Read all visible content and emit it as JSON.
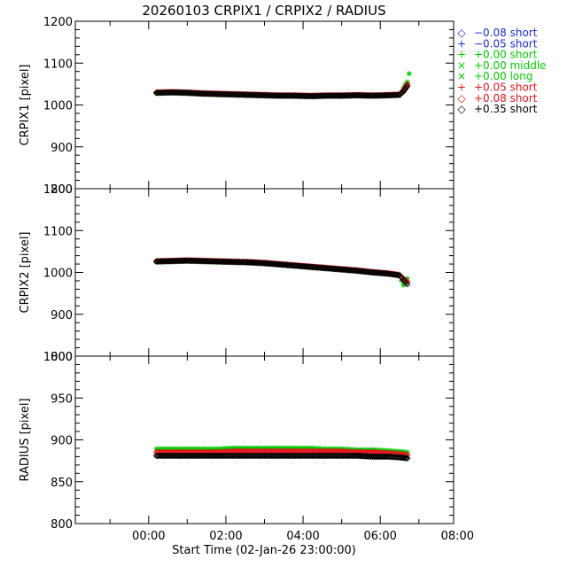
{
  "chart_data": {
    "type": "scatter",
    "title": "20260103 CRPIX1 / CRPIX2 / RADIUS",
    "xlabel": "Start Time (02-Jan-26 23:00:00)",
    "x_units": "hours since 02-Jan-26 23:00:00",
    "xlim": [
      -0.9,
      8.9
    ],
    "x_ticks": [
      1,
      3,
      5,
      7,
      9
    ],
    "x_tick_labels": [
      "00:00",
      "02:00",
      "04:00",
      "06:00",
      "08:00"
    ],
    "legend": {
      "placement": "right",
      "entries": [
        {
          "symbol": "◇",
          "label": "−0.08 short",
          "color": "#1d2cd6"
        },
        {
          "symbol": "+",
          "label": "−0.05 short",
          "color": "#1d2cd6"
        },
        {
          "symbol": "+",
          "label": "+0.00 short",
          "color": "#00cc00"
        },
        {
          "symbol": "×",
          "label": "+0.00 middle",
          "color": "#00cc00"
        },
        {
          "symbol": "×",
          "label": "+0.00 long",
          "color": "#00cc00"
        },
        {
          "symbol": "+",
          "label": "+0.05 short",
          "color": "#e8141f"
        },
        {
          "symbol": "◇",
          "label": "+0.08 short",
          "color": "#e8141f"
        },
        {
          "symbol": "◇",
          "label": "+0.35 short",
          "color": "#000000"
        }
      ]
    },
    "panels": [
      {
        "name": "crpix1",
        "ylabel": "CRPIX1 [pixel]",
        "ylim": [
          800,
          1200
        ],
        "y_ticks": [
          800,
          900,
          1000,
          1100,
          1200
        ],
        "series": [
          {
            "name": "+0.35 short",
            "color": "#000000",
            "symbol": "diamond",
            "x": [
              1.2,
              1.6,
              2.0,
              2.4,
              2.8,
              3.2,
              3.6,
              4.0,
              4.4,
              4.8,
              5.2,
              5.6,
              6.0,
              6.4,
              6.8,
              7.2,
              7.5,
              7.6,
              7.7
            ],
            "y": [
              1029,
              1030,
              1029,
              1027,
              1026,
              1025,
              1024,
              1023,
              1022,
              1022,
              1021,
              1022,
              1022,
              1023,
              1022,
              1023,
              1024,
              1032,
              1045
            ]
          },
          {
            "name": "+0.08 short",
            "color": "#e8141f",
            "symbol": "diamond",
            "x": [
              1.2,
              1.6,
              2.0,
              2.4,
              2.8,
              3.2,
              3.6,
              4.0,
              4.4,
              4.8,
              5.2,
              5.6,
              6.0,
              6.4,
              6.8,
              7.2,
              7.5,
              7.6,
              7.7
            ],
            "y": [
              1030,
              1031,
              1030,
              1028,
              1027,
              1026,
              1025,
              1024,
              1023,
              1023,
              1022,
              1023,
              1023,
              1024,
              1023,
              1024,
              1025,
              1035,
              1050
            ]
          },
          {
            "name": "+0.00 short",
            "color": "#00cc00",
            "symbol": "asterisk",
            "x": [
              1.2,
              1.6,
              2.0,
              2.4,
              2.8,
              3.2,
              3.6,
              4.0,
              4.4,
              4.8,
              5.2,
              5.6,
              6.0,
              6.4,
              6.8,
              7.2,
              7.5,
              7.6,
              7.7,
              7.75
            ],
            "y": [
              1028,
              1029,
              1028,
              1026,
              1025,
              1024,
              1023,
              1022,
              1021,
              1021,
              1020,
              1021,
              1021,
              1022,
              1021,
              1022,
              1023,
              1040,
              1055,
              1075
            ]
          }
        ]
      },
      {
        "name": "crpix2",
        "ylabel": "CRPIX2 [pixel]",
        "ylim": [
          800,
          1200
        ],
        "y_ticks": [
          800,
          900,
          1000,
          1100,
          1200
        ],
        "series": [
          {
            "name": "+0.35 short",
            "color": "#000000",
            "symbol": "diamond",
            "x": [
              1.2,
              1.6,
              2.0,
              2.4,
              2.8,
              3.2,
              3.6,
              4.0,
              4.4,
              4.8,
              5.2,
              5.6,
              6.0,
              6.4,
              6.8,
              7.2,
              7.5,
              7.6,
              7.7
            ],
            "y": [
              1026,
              1027,
              1028,
              1027,
              1026,
              1025,
              1024,
              1022,
              1019,
              1016,
              1013,
              1010,
              1007,
              1004,
              1000,
              997,
              993,
              982,
              972
            ]
          },
          {
            "name": "+0.08 short",
            "color": "#e8141f",
            "symbol": "diamond",
            "x": [
              1.2,
              1.6,
              2.0,
              2.4,
              2.8,
              3.2,
              3.6,
              4.0,
              4.4,
              4.8,
              5.2,
              5.6,
              6.0,
              6.4,
              6.8,
              7.2,
              7.5,
              7.6,
              7.7
            ],
            "y": [
              1027,
              1028,
              1029,
              1028,
              1027,
              1026,
              1025,
              1023,
              1020,
              1017,
              1014,
              1011,
              1008,
              1005,
              1001,
              998,
              994,
              985,
              978
            ]
          },
          {
            "name": "+0.00 short",
            "color": "#00cc00",
            "symbol": "asterisk",
            "x": [
              1.2,
              1.6,
              2.0,
              2.4,
              2.8,
              3.2,
              3.6,
              4.0,
              4.4,
              4.8,
              5.2,
              5.6,
              6.0,
              6.4,
              6.8,
              7.2,
              7.5,
              7.6,
              7.7
            ],
            "y": [
              1025,
              1026,
              1027,
              1026,
              1025,
              1024,
              1023,
              1021,
              1018,
              1015,
              1012,
              1009,
              1006,
              1003,
              999,
              996,
              992,
              970,
              985
            ]
          }
        ]
      },
      {
        "name": "radius",
        "ylabel": "RADIUS [pixel]",
        "ylim": [
          800,
          1000
        ],
        "y_ticks": [
          800,
          850,
          900,
          950,
          1000
        ],
        "series": [
          {
            "name": "+0.35 short",
            "color": "#000000",
            "symbol": "diamond",
            "x": [
              1.2,
              1.6,
              2.0,
              2.4,
              2.8,
              3.2,
              3.6,
              4.0,
              4.4,
              4.8,
              5.2,
              5.6,
              6.0,
              6.4,
              6.8,
              7.2,
              7.5,
              7.7
            ],
            "y": [
              881,
              881,
              881,
              881,
              881,
              881,
              881,
              881,
              881,
              881,
              881,
              881,
              881,
              881,
              880,
              880,
              879,
              878
            ]
          },
          {
            "name": "+0.08 short",
            "color": "#e8141f",
            "symbol": "diamond",
            "x": [
              1.2,
              1.6,
              2.0,
              2.4,
              2.8,
              3.2,
              3.6,
              4.0,
              4.4,
              4.8,
              5.2,
              5.6,
              6.0,
              6.4,
              6.8,
              7.2,
              7.5,
              7.7
            ],
            "y": [
              885,
              885,
              885,
              885,
              885,
              886,
              886,
              886,
              886,
              886,
              886,
              886,
              886,
              885,
              885,
              884,
              883,
              882
            ]
          },
          {
            "name": "+0.00 short",
            "color": "#00cc00",
            "symbol": "asterisk",
            "x": [
              1.2,
              1.6,
              2.0,
              2.4,
              2.8,
              3.2,
              3.6,
              4.0,
              4.4,
              4.8,
              5.2,
              5.6,
              6.0,
              6.4,
              6.8,
              7.2,
              7.5,
              7.7
            ],
            "y": [
              889,
              889,
              889,
              889,
              889,
              890,
              890,
              890,
              890,
              890,
              890,
              889,
              889,
              888,
              888,
              887,
              886,
              885
            ]
          }
        ]
      }
    ]
  }
}
